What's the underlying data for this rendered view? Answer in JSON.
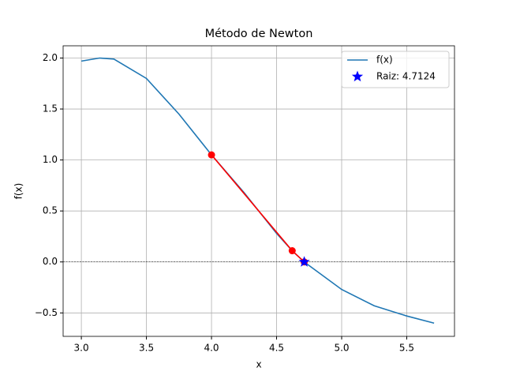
{
  "chart_data": {
    "type": "line",
    "title": "Método de Newton",
    "xlabel": "x",
    "ylabel": "f(x)",
    "x": [
      3.0,
      3.14,
      3.25,
      3.5,
      3.75,
      4.0,
      4.25,
      4.5,
      4.62,
      4.7124,
      5.0,
      5.25,
      5.5,
      5.71
    ],
    "series": [
      {
        "name": "f(x)",
        "color": "#1f77b4",
        "values": [
          1.97,
          2.0,
          1.99,
          1.8,
          1.45,
          1.05,
          0.68,
          0.28,
          0.11,
          0.0,
          -0.27,
          -0.43,
          -0.53,
          -0.6
        ]
      }
    ],
    "iterations": {
      "x": [
        4.0,
        4.62,
        4.7124
      ],
      "values": [
        1.05,
        0.11,
        0.0
      ],
      "color": "#ff0000"
    },
    "root": {
      "name": "Raiz: 4.7124",
      "color": "#0000ff",
      "x": [
        4.7124
      ],
      "values": [
        0
      ]
    },
    "hline": 0,
    "xlim": [
      2.86,
      5.867
    ],
    "ylim": [
      -0.73,
      2.12
    ],
    "xticks": [
      {
        "value": 3,
        "label": "3.0"
      },
      {
        "value": 3.5,
        "label": "3.5"
      },
      {
        "value": 4,
        "label": "4.0"
      },
      {
        "value": 4.5,
        "label": "4.5"
      },
      {
        "value": 5,
        "label": "5.0"
      },
      {
        "value": 5.5,
        "label": "5.5"
      }
    ],
    "yticks": [
      {
        "value": -0.5,
        "label": "−0.5"
      },
      {
        "value": 0,
        "label": "0.0"
      },
      {
        "value": 0.5,
        "label": "0.5"
      },
      {
        "value": 1,
        "label": "1.0"
      },
      {
        "value": 1.5,
        "label": "1.5"
      },
      {
        "value": 2,
        "label": "2.0"
      }
    ],
    "grid": true,
    "legend": "upper right"
  }
}
